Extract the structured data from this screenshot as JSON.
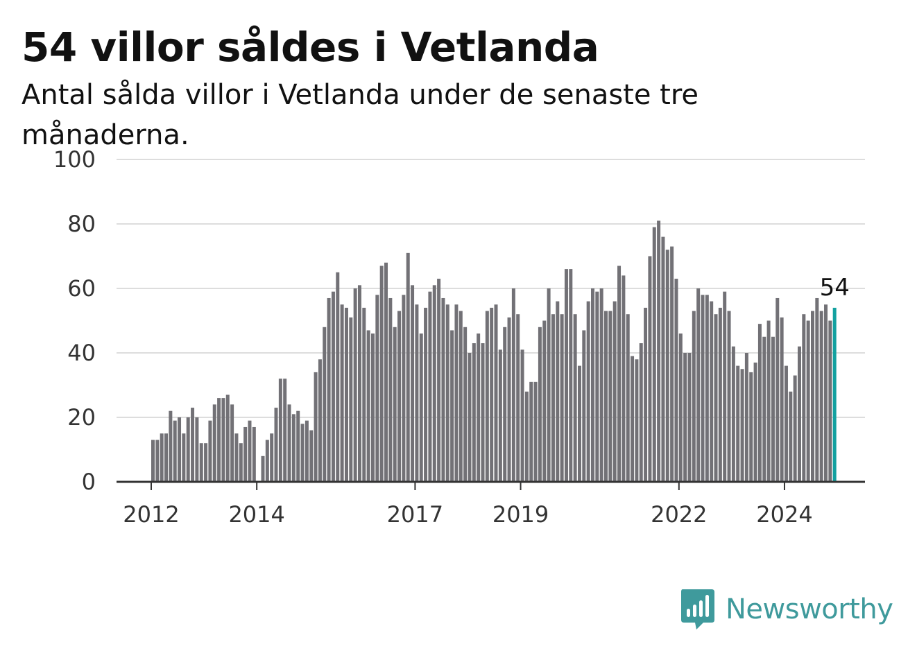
{
  "header": {
    "title": "54 villor såldes i Vetlanda",
    "subtitle": "Antal sålda villor i Vetlanda under de senaste tre månaderna."
  },
  "brand": {
    "name": "Newsworthy",
    "icon": "bar-chart-speech-bubble-icon"
  },
  "colors": {
    "bar": "#727176",
    "highlight": "#13a1a0",
    "grid": "#dddddd",
    "axis": "#333333",
    "brand": "#3f9a9c"
  },
  "chart_data": {
    "type": "bar",
    "title": "54 villor såldes i Vetlanda",
    "subtitle": "Antal sålda villor i Vetlanda under de senaste tre månaderna.",
    "xlabel": "",
    "ylabel": "",
    "ylim": [
      0,
      100
    ],
    "yticks": [
      0,
      20,
      40,
      60,
      80,
      100
    ],
    "xticks": [
      "2012",
      "2014",
      "2017",
      "2019",
      "2022",
      "2024"
    ],
    "first_period": "2012-01",
    "frequency": "monthly",
    "grid": true,
    "legend": "none",
    "highlight_last": true,
    "last_value_label": "54",
    "values": [
      13,
      13,
      15,
      15,
      22,
      19,
      20,
      15,
      20,
      23,
      20,
      12,
      12,
      19,
      24,
      26,
      26,
      27,
      24,
      15,
      12,
      17,
      19,
      17,
      null,
      8,
      13,
      15,
      23,
      32,
      32,
      24,
      21,
      22,
      18,
      19,
      16,
      34,
      38,
      48,
      57,
      59,
      65,
      55,
      54,
      51,
      60,
      61,
      54,
      47,
      46,
      58,
      67,
      68,
      57,
      48,
      53,
      58,
      71,
      61,
      55,
      46,
      54,
      59,
      61,
      63,
      57,
      55,
      47,
      55,
      53,
      48,
      40,
      43,
      46,
      43,
      53,
      54,
      55,
      41,
      48,
      51,
      60,
      52,
      41,
      28,
      31,
      31,
      48,
      50,
      60,
      52,
      56,
      52,
      66,
      66,
      52,
      36,
      47,
      56,
      60,
      59,
      60,
      53,
      53,
      56,
      67,
      64,
      52,
      39,
      38,
      43,
      54,
      70,
      79,
      81,
      76,
      72,
      73,
      63,
      46,
      40,
      40,
      53,
      60,
      58,
      58,
      56,
      52,
      54,
      59,
      53,
      42,
      36,
      35,
      40,
      34,
      37,
      49,
      45,
      50,
      45,
      57,
      51,
      36,
      28,
      33,
      42,
      52,
      50,
      53,
      57,
      53,
      55,
      50,
      54
    ]
  }
}
